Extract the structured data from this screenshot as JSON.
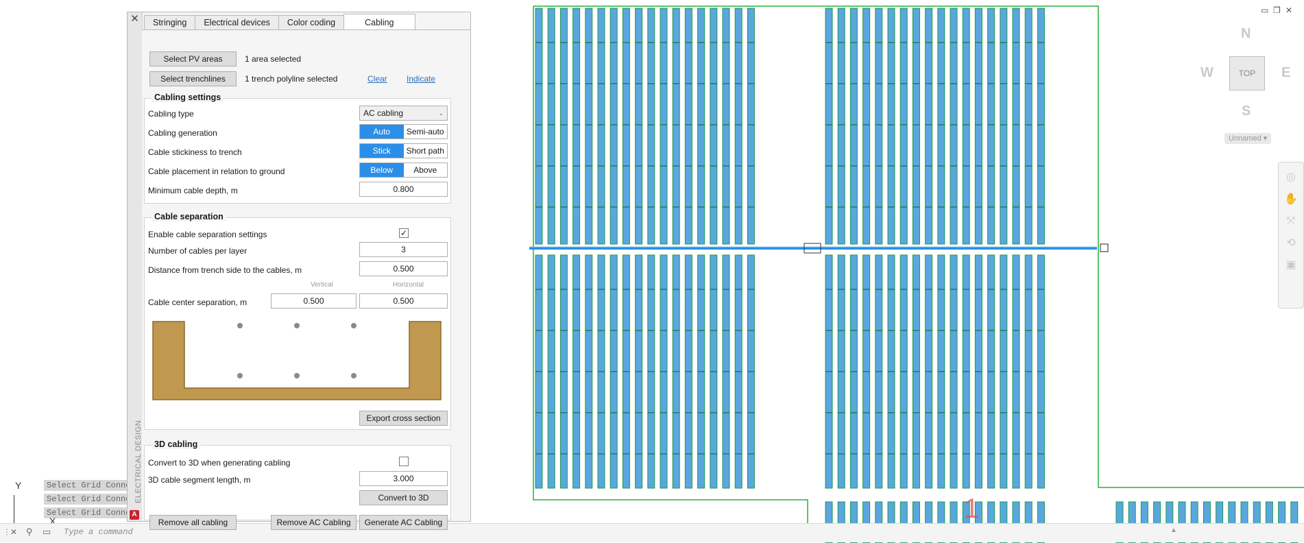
{
  "tabs": [
    "Stringing",
    "Electrical devices",
    "Color coding",
    "Cabling"
  ],
  "active_tab": "Cabling",
  "selection": {
    "pv_button": "Select PV areas",
    "pv_status": "1 area selected",
    "trench_button": "Select trenchlines",
    "trench_status": "1 trench polyline selected",
    "clear_link": "Clear",
    "indicate_link": "Indicate"
  },
  "cabling_settings": {
    "title": "Cabling settings",
    "type_label": "Cabling type",
    "type_value": "AC cabling",
    "generation_label": "Cabling generation",
    "generation_options": [
      "Auto",
      "Semi-auto"
    ],
    "stickiness_label": "Cable stickiness to trench",
    "stickiness_options": [
      "Stick",
      "Short path"
    ],
    "placement_label": "Cable placement in relation to ground",
    "placement_options": [
      "Below",
      "Above"
    ],
    "depth_label": "Minimum cable depth, m",
    "depth_value": "0.800"
  },
  "cable_separation": {
    "title": "Cable separation",
    "enable_label": "Enable cable separation settings",
    "enable_checked": "✓",
    "cables_per_layer_label": "Number of cables per layer",
    "cables_per_layer_value": "3",
    "distance_label": "Distance from trench side to the cables, m",
    "distance_value": "0.500",
    "vertical_caption": "Vertical",
    "horizontal_caption": "Horizontal",
    "center_label": "Cable center separation, m",
    "vertical_value": "0.500",
    "horizontal_value": "0.500",
    "export_button": "Export cross section"
  },
  "cabling_3d": {
    "title": "3D cabling",
    "convert_label": "Convert to 3D when generating cabling",
    "segment_label": "3D cable segment length, m",
    "segment_value": "3.000",
    "convert_button": "Convert to 3D"
  },
  "footer": {
    "remove_all": "Remove all cabling",
    "remove_ac": "Remove AC Cabling",
    "generate_ac": "Generate AC Cabling"
  },
  "palette": {
    "vertical_title": "ELECTRICAL DESIGN",
    "close": "✕",
    "logo": "A"
  },
  "viewcube": {
    "n": "N",
    "s": "S",
    "e": "E",
    "w": "W",
    "top": "TOP",
    "named_view": "Unnamed"
  },
  "command": {
    "placeholder": "Type a command",
    "history": [
      "Select Grid Conne",
      "Select Grid Conne",
      "Select Grid Conne"
    ]
  },
  "ucs": {
    "y": "Y",
    "x": "X"
  },
  "canvas_label": "1",
  "colors": {
    "accent": "#2b8ee8",
    "pv_fill": "#5aa7e0",
    "pv_border": "#1f9a4a",
    "trench_dirt": "#c0984f",
    "boundary": "#27b13c",
    "label_red": "#e24b4b"
  }
}
